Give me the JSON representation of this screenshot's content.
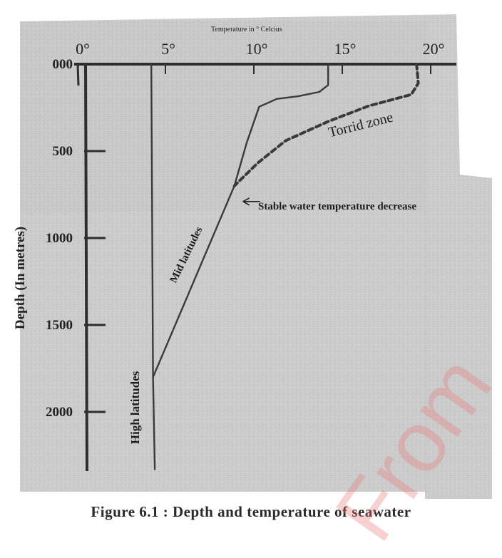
{
  "chart_data": {
    "type": "line",
    "title": "Temperature in ° Celcius",
    "xlabel": "Temperature in ° Celcius",
    "ylabel": "Depth (In metres)",
    "xlim": [
      0,
      22
    ],
    "ylim": [
      0,
      2340
    ],
    "x_ticks": [
      "0°",
      "5°",
      "10°",
      "15°",
      "20°"
    ],
    "x_tick_values": [
      0,
      5,
      10,
      15,
      20
    ],
    "y_ticks": [
      "000",
      "500",
      "1000",
      "1500",
      "2000"
    ],
    "y_tick_values": [
      0,
      500,
      1000,
      1500,
      2000
    ],
    "series": [
      {
        "name": "High latitudes",
        "style": "solid",
        "points": [
          [
            4.2,
            0
          ],
          [
            4.3,
            1800
          ],
          [
            4.4,
            2330
          ]
        ]
      },
      {
        "name": "Mid latitudes",
        "style": "solid",
        "points": [
          [
            14.2,
            0
          ],
          [
            14.2,
            120
          ],
          [
            13.7,
            160
          ],
          [
            12.5,
            185
          ],
          [
            11.3,
            200
          ],
          [
            10.3,
            245
          ],
          [
            9.6,
            450
          ],
          [
            8.9,
            700
          ],
          [
            4.3,
            1800
          ]
        ]
      },
      {
        "name": "Torrid zone",
        "style": "dashed",
        "points": [
          [
            19.2,
            0
          ],
          [
            19.3,
            110
          ],
          [
            18.9,
            175
          ],
          [
            16.5,
            240
          ],
          [
            14.2,
            330
          ],
          [
            11.8,
            440
          ],
          [
            10.2,
            570
          ],
          [
            8.9,
            700
          ]
        ]
      }
    ],
    "annotations": [
      {
        "text": "Stable water temperature decrease",
        "arrow": true
      },
      {
        "text": "Mid latitudes"
      },
      {
        "text": "High latitudes"
      },
      {
        "text": "Torrid zone"
      }
    ],
    "caption": "Figure 6.1 : Depth and temperature of seawater",
    "grid": false
  },
  "labels": {
    "temp_title": "Temperature in ° Celcius",
    "ylabel": "Depth (In metres)",
    "caption": "Figure 6.1 : Depth and temperature of seawater",
    "high": "High latitudes",
    "mid": "Mid latitudes",
    "torrid": "Torrid zone",
    "stable": "Stable water temperature decrease",
    "watermark": "From"
  },
  "colors": {
    "background": "#ffffff",
    "scan_gray": "#c8c8c8",
    "ink": "#3a3a3a",
    "watermark": "#e87878"
  }
}
